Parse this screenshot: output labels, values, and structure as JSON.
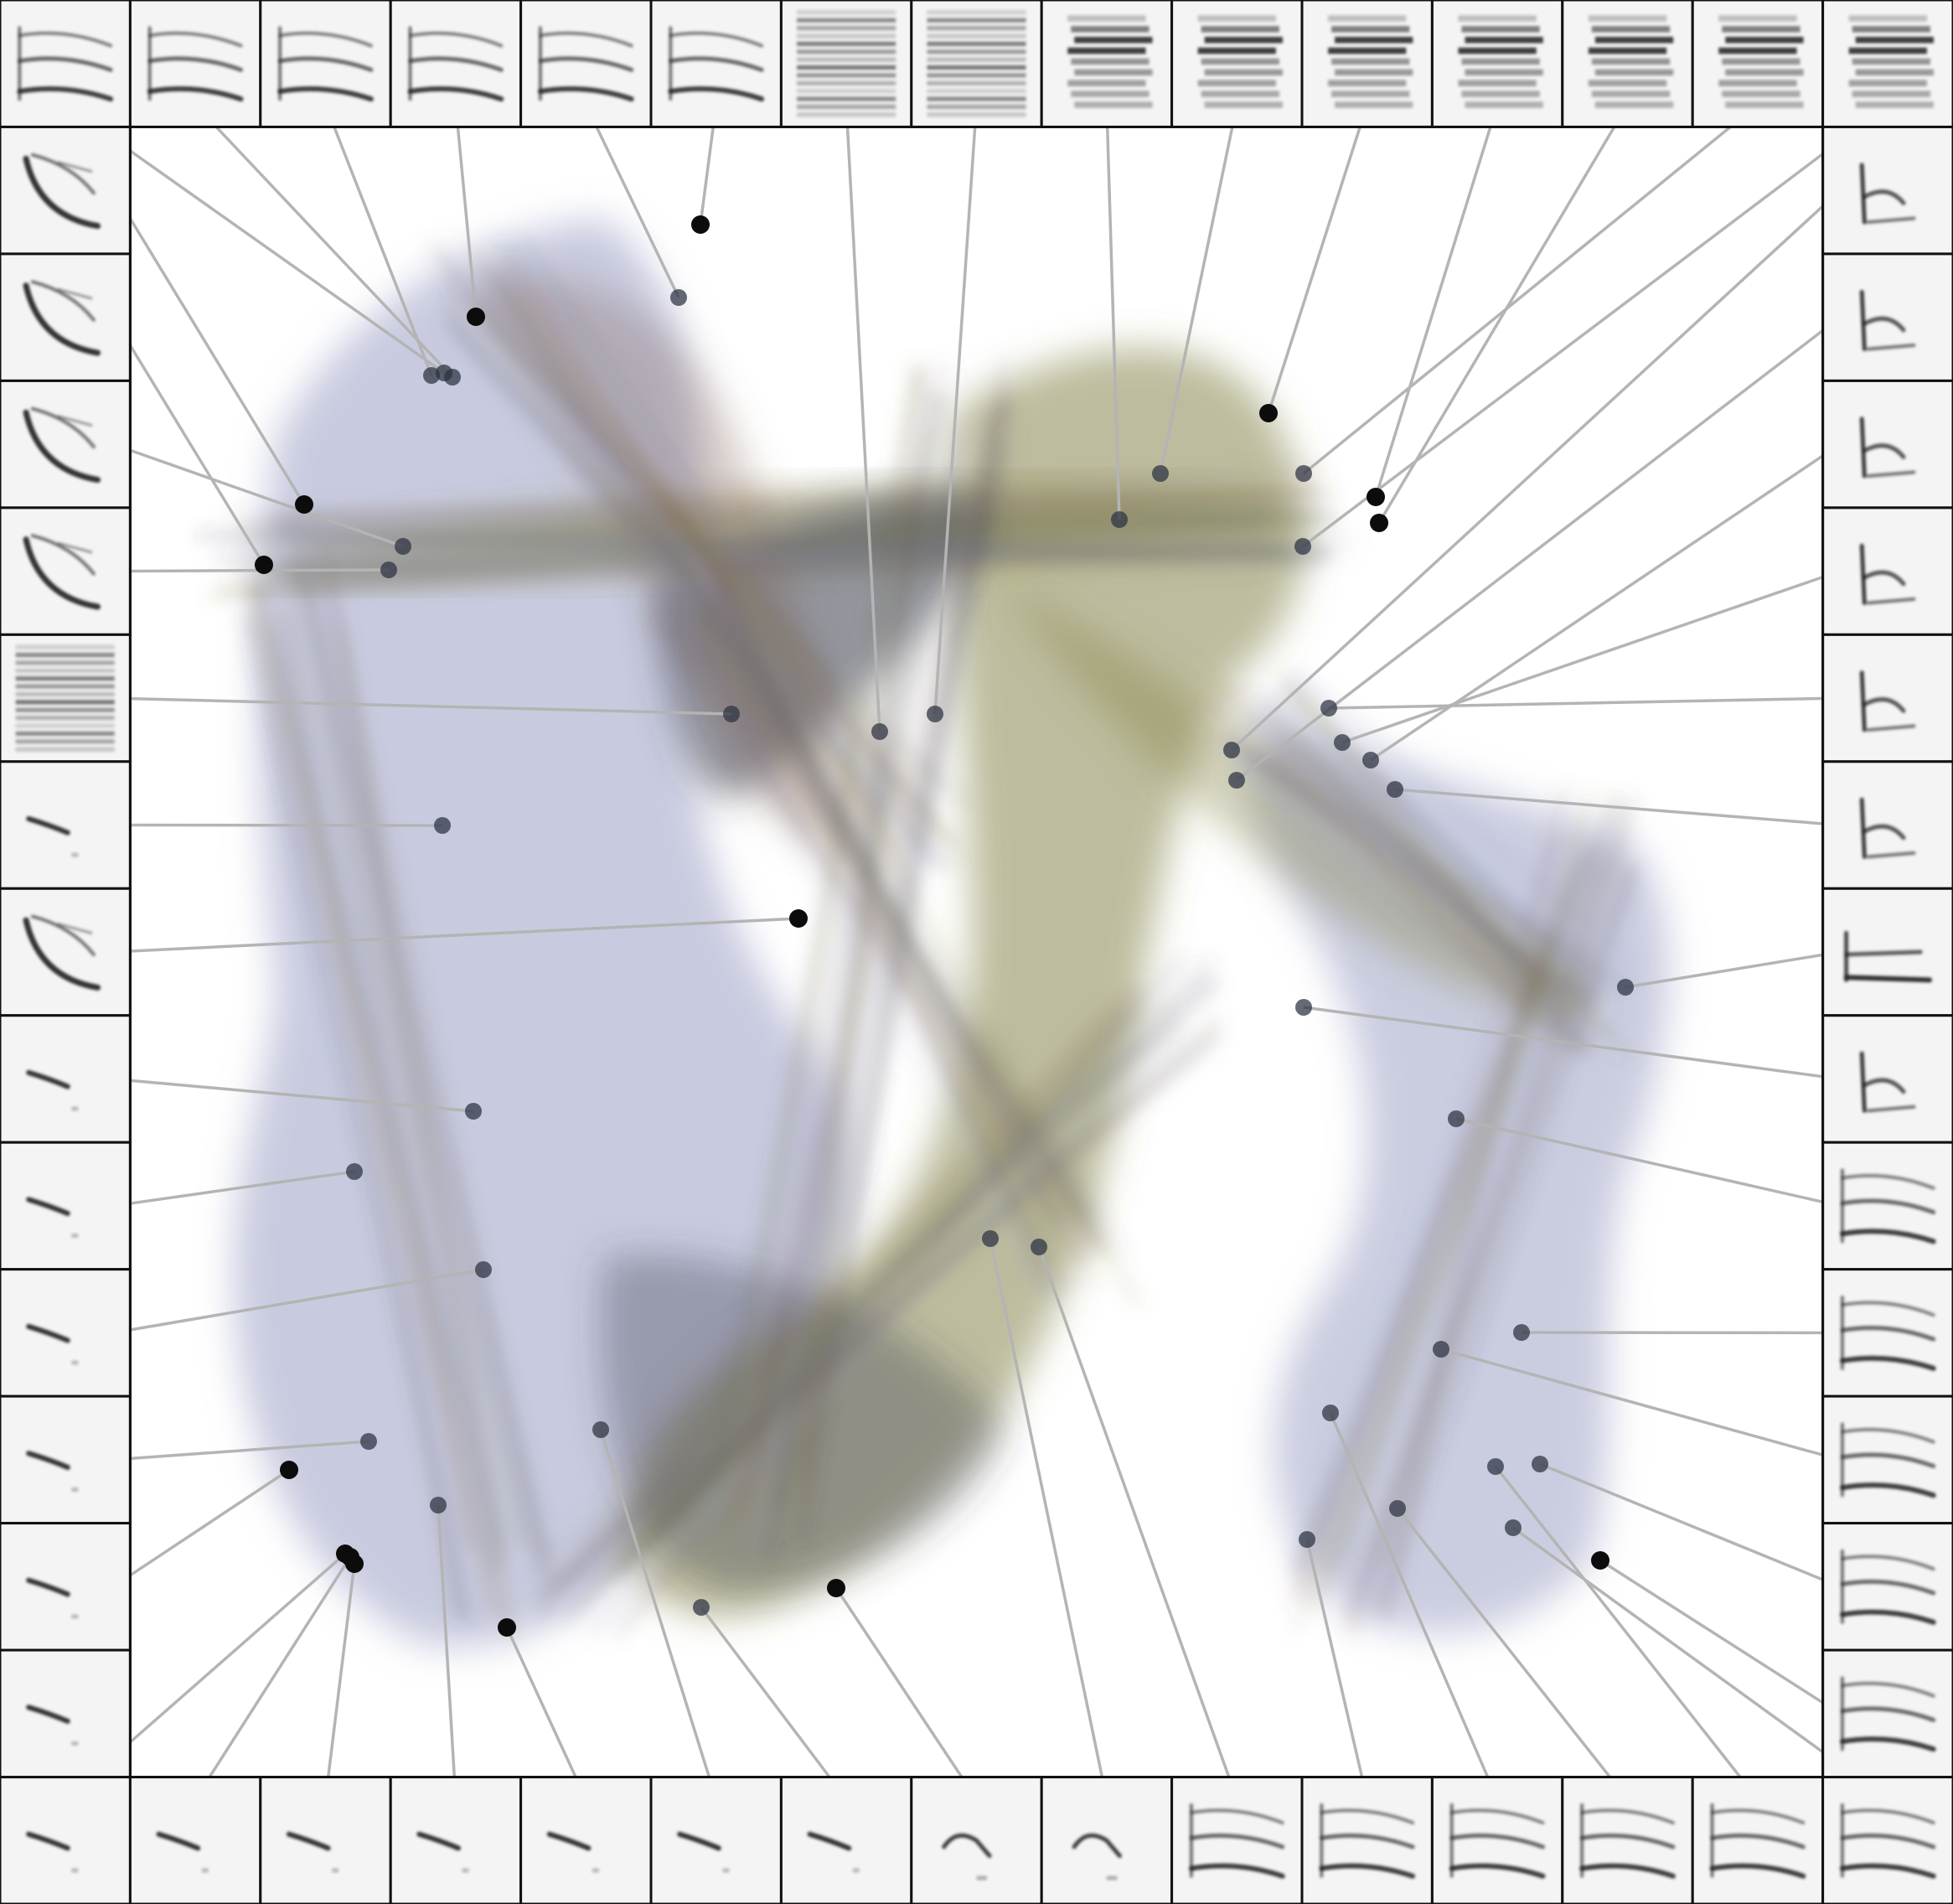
{
  "figure": {
    "grid_columns": 15,
    "grid_rows": 15,
    "tile_style": "spectrogram",
    "colors": {
      "background": "#ffffff",
      "border": "#111111",
      "leader_line": "#b4b4b4",
      "dot": "#1a1a1a",
      "cloud_blue": "#9aa0c4",
      "cloud_olive": "#7d7a3e",
      "cloud_rust": "#7a5748",
      "cloud_dark": "#3a3e4e",
      "spectrogram_ink": "#202020"
    },
    "spectrogram_patterns": {
      "top": [
        "stacked-harmonics",
        "stacked-harmonics",
        "stacked-harmonics",
        "stacked-harmonics",
        "stacked-harmonics",
        "stacked-harmonics",
        "dense-noise",
        "dense-noise",
        "dense-band",
        "dense-band",
        "dense-band",
        "dense-band",
        "dense-band",
        "dense-band",
        "dense-band"
      ],
      "left": [
        "upsweep",
        "upsweep",
        "upsweep",
        "upsweep",
        "dense-noise",
        "short-note",
        "upsweep",
        "short-note",
        "short-note",
        "short-note",
        "short-note",
        "short-note",
        "short-note"
      ],
      "right": [
        "complex-note",
        "complex-note",
        "complex-note",
        "complex-note",
        "complex-note",
        "complex-note",
        "harmonic-step",
        "complex-note",
        "stacked-harmonics",
        "stacked-harmonics",
        "stacked-harmonics",
        "stacked-harmonics",
        "stacked-harmonics"
      ],
      "bottom": [
        "short-note",
        "short-note",
        "short-note",
        "short-note",
        "short-note",
        "short-note",
        "short-note",
        "hook-note",
        "hook-note",
        "stacked-harmonics",
        "stacked-harmonics",
        "stacked-harmonics",
        "stacked-harmonics",
        "stacked-harmonics",
        "stacked-harmonics"
      ]
    }
  }
}
